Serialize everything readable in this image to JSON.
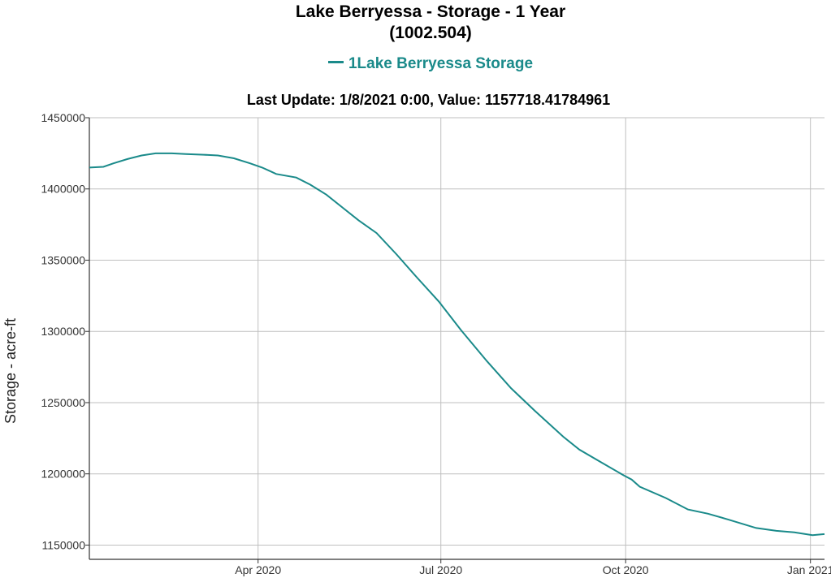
{
  "chart_data": {
    "type": "line",
    "title": "Lake Berryessa - Storage - 1 Year",
    "subtitle": "(1002.504)",
    "last_update": "Last Update: 1/8/2021 0:00, Value: 1157718.41784961",
    "ylabel": "Storage - acre-ft",
    "xlabel": "",
    "xlim": [
      "2020-01-08",
      "2021-01-08"
    ],
    "ylim": [
      1140000,
      1450000
    ],
    "y_ticks": [
      1150000,
      1200000,
      1250000,
      1300000,
      1350000,
      1400000,
      1450000
    ],
    "x_ticks": [
      {
        "date": "2020-04-01",
        "label": "Apr 2020"
      },
      {
        "date": "2020-07-01",
        "label": "Jul 2020"
      },
      {
        "date": "2020-10-01",
        "label": "Oct 2020"
      },
      {
        "date": "2021-01-01",
        "label": "Jan 2021"
      }
    ],
    "grid": true,
    "legend_position": "top-center",
    "series": [
      {
        "name": "1Lake Berryessa Storage",
        "color": "#1a8a8a",
        "points": [
          [
            "2020-01-08",
            1415000
          ],
          [
            "2020-01-15",
            1415500
          ],
          [
            "2020-01-20",
            1418000
          ],
          [
            "2020-01-27",
            1421000
          ],
          [
            "2020-02-03",
            1423500
          ],
          [
            "2020-02-10",
            1425000
          ],
          [
            "2020-02-18",
            1425000
          ],
          [
            "2020-02-25",
            1424500
          ],
          [
            "2020-03-05",
            1424000
          ],
          [
            "2020-03-12",
            1423500
          ],
          [
            "2020-03-20",
            1421500
          ],
          [
            "2020-03-28",
            1418000
          ],
          [
            "2020-04-03",
            1415000
          ],
          [
            "2020-04-07",
            1412500
          ],
          [
            "2020-04-10",
            1410500
          ],
          [
            "2020-04-20",
            1408000
          ],
          [
            "2020-04-27",
            1403000
          ],
          [
            "2020-05-05",
            1396000
          ],
          [
            "2020-05-13",
            1387000
          ],
          [
            "2020-05-21",
            1378000
          ],
          [
            "2020-05-30",
            1369000
          ],
          [
            "2020-06-09",
            1354000
          ],
          [
            "2020-06-19",
            1338000
          ],
          [
            "2020-06-30",
            1321000
          ],
          [
            "2020-07-11",
            1301000
          ],
          [
            "2020-07-24",
            1279000
          ],
          [
            "2020-08-05",
            1260000
          ],
          [
            "2020-08-17",
            1244000
          ],
          [
            "2020-08-31",
            1226000
          ],
          [
            "2020-09-08",
            1217000
          ],
          [
            "2020-09-19",
            1208000
          ],
          [
            "2020-09-30",
            1199000
          ],
          [
            "2020-10-04",
            1196000
          ],
          [
            "2020-10-08",
            1191000
          ],
          [
            "2020-10-21",
            1183000
          ],
          [
            "2020-11-01",
            1175000
          ],
          [
            "2020-11-11",
            1172000
          ],
          [
            "2020-11-21",
            1168000
          ],
          [
            "2020-12-05",
            1162000
          ],
          [
            "2020-12-15",
            1160000
          ],
          [
            "2020-12-24",
            1159000
          ],
          [
            "2021-01-02",
            1157000
          ],
          [
            "2021-01-08",
            1157718
          ]
        ]
      }
    ]
  }
}
